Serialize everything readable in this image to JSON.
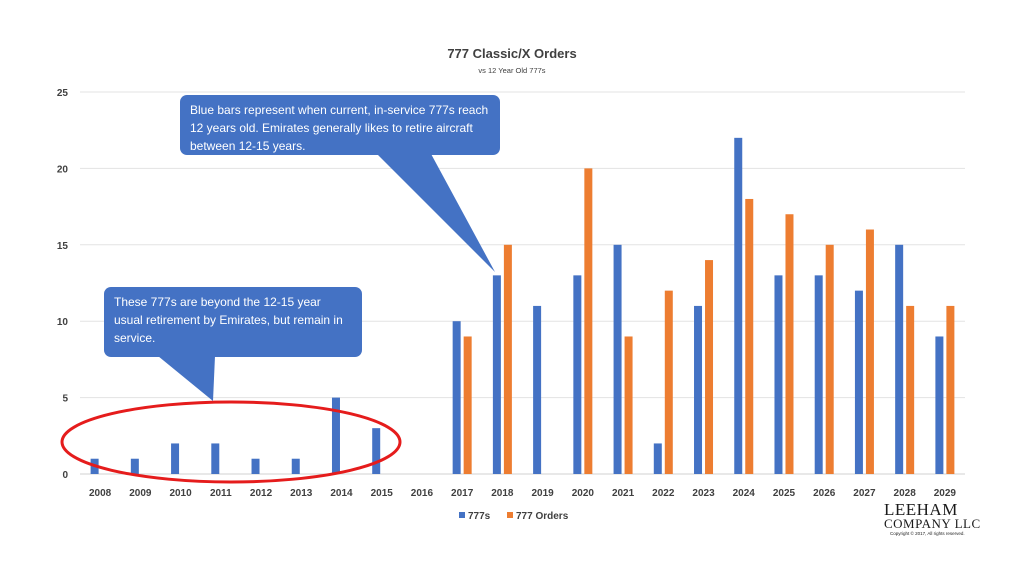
{
  "chart_data": {
    "type": "bar",
    "title": "777 Classic/X Orders",
    "subtitle": "vs 12 Year Old 777s",
    "categories": [
      "2008",
      "2009",
      "2010",
      "2011",
      "2012",
      "2013",
      "2014",
      "2015",
      "2016",
      "2017",
      "2018",
      "2019",
      "2020",
      "2021",
      "2022",
      "2023",
      "2024",
      "2025",
      "2026",
      "2027",
      "2028",
      "2029"
    ],
    "series": [
      {
        "name": "777s",
        "color": "#4472c4",
        "values": [
          1,
          1,
          2,
          2,
          1,
          1,
          5,
          3,
          0,
          10,
          13,
          11,
          13,
          15,
          2,
          11,
          22,
          13,
          13,
          12,
          15,
          9
        ]
      },
      {
        "name": "777 Orders",
        "color": "#ed7d31",
        "values": [
          0,
          0,
          0,
          0,
          0,
          0,
          0,
          0,
          0,
          9,
          15,
          0,
          20,
          9,
          12,
          14,
          18,
          17,
          15,
          16,
          11,
          11
        ]
      }
    ],
    "ylim": [
      0,
      25
    ],
    "yticks": [
      "0",
      "5",
      "10",
      "15",
      "20",
      "25"
    ],
    "grid": true,
    "legend": "bottom",
    "annotations": {
      "callout_blue": "Blue bars represent when current, in-service 777s reach 12 years old. Emirates generally likes to retire aircraft between 12-15 years.",
      "callout_old": "These 777s are beyond the 12-15 year usual retirement by Emirates, but remain in service."
    }
  },
  "logo": {
    "line1": "LEEHAM",
    "line2": "COMPANY LLC",
    "line3": "Copyright © 2017, All rights reserved."
  }
}
